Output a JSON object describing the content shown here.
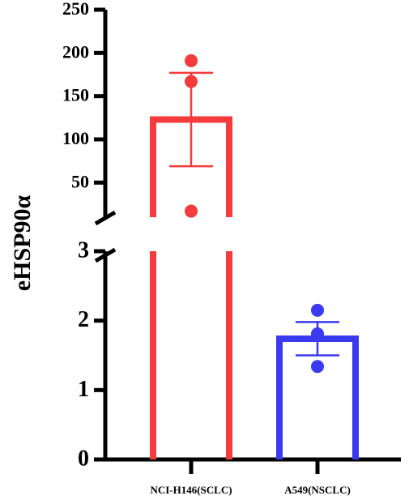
{
  "chart_data": {
    "type": "bar",
    "y_label": "eHSP90α",
    "categories": [
      "NCI-H146(SCLC)",
      "A549(NSCLC)"
    ],
    "values": [
      123,
      1.74
    ],
    "errors": [
      54,
      0.24
    ],
    "points": [
      [
        191,
        167,
        17
      ],
      [
        2.15,
        1.81,
        1.34
      ]
    ],
    "colors": [
      "#f53b3b",
      "#3a3af0"
    ],
    "axis_break": {
      "lower": {
        "ylim": [
          0,
          3
        ],
        "yticks": [
          0,
          1,
          2,
          3
        ]
      },
      "upper": {
        "ylim": [
          10,
          250
        ],
        "yticks": [
          50,
          100,
          150,
          200,
          250
        ]
      }
    }
  }
}
